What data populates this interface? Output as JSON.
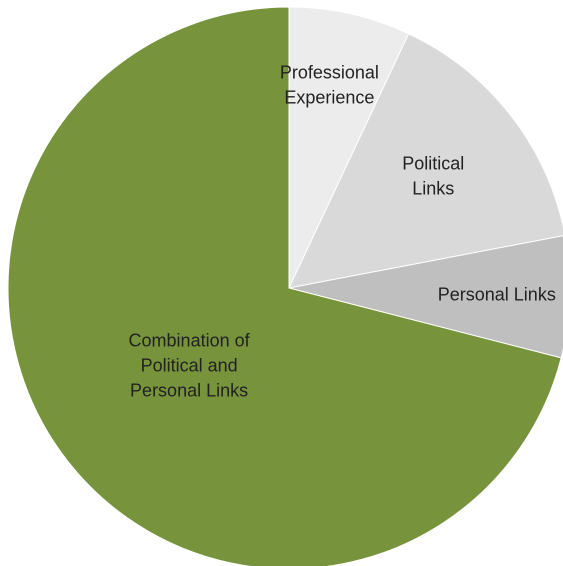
{
  "chart_data": {
    "type": "pie",
    "start_angle_deg": 0,
    "direction": "clockwise",
    "slices": [
      {
        "label": "Professional Experience",
        "label_lines": [
          "Professional",
          "Experience"
        ],
        "value": 7,
        "color": "#ececec"
      },
      {
        "label": "Political Links",
        "label_lines": [
          "Political",
          "Links"
        ],
        "value": 15,
        "color": "#d9d9d9"
      },
      {
        "label": "Personal Links",
        "label_lines": [
          "Personal Links"
        ],
        "value": 7,
        "color": "#bfbfbf"
      },
      {
        "label": "Combination of Political and Personal Links",
        "label_lines": [
          "Combination of",
          "Political and",
          "Personal Links"
        ],
        "value": 71,
        "color": "#77933c"
      }
    ]
  }
}
